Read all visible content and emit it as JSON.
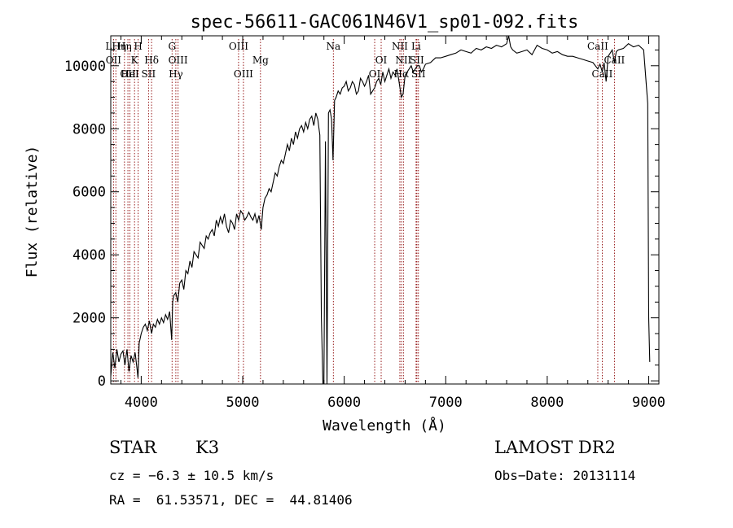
{
  "chart_data": {
    "type": "line",
    "title": "spec-56611-GAC061N46V1_sp01-092.fits",
    "xlabel": "Wavelength (Å)",
    "ylabel": "Flux (relative)",
    "xlim": [
      3700,
      9100
    ],
    "ylim": [
      -100,
      10950
    ],
    "xticks": [
      4000,
      5000,
      6000,
      7000,
      8000,
      9000
    ],
    "xtick_labels": [
      "4000",
      "5000",
      "6000",
      "7000",
      "8000",
      "9000"
    ],
    "yticks": [
      0,
      2000,
      4000,
      6000,
      8000,
      10000
    ],
    "ytick_labels": [
      "0",
      "2000",
      "4000",
      "6000",
      "8000",
      "10000"
    ],
    "grid": false,
    "series": [
      {
        "x": [
          3700,
          3720,
          3740,
          3760,
          3780,
          3800,
          3820,
          3840,
          3860,
          3880,
          3900,
          3920,
          3940,
          3960,
          3968,
          3980,
          4000,
          4020,
          4040,
          4060,
          4080,
          4102,
          4120,
          4140,
          4160,
          4180,
          4200,
          4220,
          4240,
          4260,
          4280,
          4300,
          4310,
          4320,
          4340,
          4360,
          4380,
          4400,
          4420,
          4440,
          4460,
          4480,
          4500,
          4520,
          4540,
          4560,
          4580,
          4600,
          4620,
          4640,
          4660,
          4680,
          4700,
          4720,
          4740,
          4760,
          4780,
          4800,
          4820,
          4840,
          4861,
          4880,
          4900,
          4920,
          4940,
          4960,
          4980,
          5000,
          5020,
          5040,
          5060,
          5080,
          5100,
          5120,
          5140,
          5160,
          5183,
          5200,
          5220,
          5240,
          5260,
          5280,
          5300,
          5320,
          5340,
          5360,
          5380,
          5400,
          5420,
          5440,
          5460,
          5480,
          5500,
          5520,
          5540,
          5560,
          5580,
          5600,
          5620,
          5640,
          5660,
          5680,
          5700,
          5720,
          5740,
          5760,
          5775,
          5790,
          5800,
          5815,
          5830,
          5845,
          5860,
          5875,
          5890,
          5905,
          5920,
          5940,
          5960,
          5980,
          6000,
          6020,
          6040,
          6060,
          6080,
          6100,
          6120,
          6140,
          6160,
          6180,
          6200,
          6220,
          6240,
          6260,
          6280,
          6300,
          6320,
          6340,
          6360,
          6380,
          6400,
          6420,
          6440,
          6460,
          6480,
          6500,
          6520,
          6540,
          6563,
          6580,
          6600,
          6620,
          6640,
          6660,
          6680,
          6700,
          6720,
          6740,
          6760,
          6780,
          6800,
          6850,
          6900,
          6950,
          7000,
          7050,
          7100,
          7150,
          7200,
          7250,
          7300,
          7350,
          7400,
          7450,
          7500,
          7550,
          7600,
          7620,
          7640,
          7660,
          7700,
          7750,
          7800,
          7850,
          7900,
          7950,
          8000,
          8050,
          8100,
          8150,
          8200,
          8250,
          8300,
          8350,
          8400,
          8450,
          8498,
          8520,
          8542,
          8560,
          8580,
          8600,
          8620,
          8640,
          8662,
          8680,
          8700,
          8750,
          8800,
          8850,
          8900,
          8950,
          8990,
          9000,
          9010
        ],
        "y": [
          150,
          900,
          400,
          1000,
          600,
          850,
          950,
          500,
          1000,
          300,
          800,
          600,
          900,
          350,
          100,
          1200,
          1500,
          1700,
          1800,
          1600,
          1900,
          1500,
          1800,
          1700,
          1950,
          1800,
          2000,
          1850,
          2100,
          1950,
          2200,
          1300,
          2500,
          2700,
          2800,
          2500,
          3100,
          3200,
          2900,
          3500,
          3400,
          3800,
          3600,
          4100,
          4000,
          3900,
          4400,
          4300,
          4200,
          4600,
          4500,
          4700,
          4800,
          4600,
          5100,
          4900,
          5200,
          5000,
          5300,
          4900,
          4700,
          5100,
          5000,
          4800,
          5300,
          5100,
          5400,
          5300,
          5100,
          5200,
          5350,
          5200,
          5100,
          5300,
          5000,
          5250,
          4800,
          5500,
          5800,
          5900,
          6100,
          6000,
          6300,
          6600,
          6500,
          6800,
          7000,
          6900,
          7200,
          7500,
          7300,
          7700,
          7500,
          7900,
          7700,
          8000,
          8100,
          7900,
          8200,
          8000,
          8300,
          8400,
          8100,
          8500,
          8300,
          7800,
          2000,
          -100,
          -100,
          7600,
          -100,
          8500,
          8600,
          8300,
          7000,
          8900,
          9000,
          9200,
          9100,
          9300,
          9350,
          9500,
          9200,
          9300,
          9500,
          9400,
          9100,
          9200,
          9600,
          9500,
          9350,
          9500,
          9700,
          9100,
          9200,
          9300,
          9500,
          9600,
          9400,
          9800,
          9500,
          9700,
          9900,
          9600,
          9800,
          9700,
          9900,
          9500,
          9000,
          9100,
          9700,
          9800,
          9900,
          10000,
          9800,
          9900,
          10000,
          10000,
          9800,
          9900,
          10050,
          10100,
          10250,
          10250,
          10300,
          10350,
          10400,
          10500,
          10450,
          10400,
          10550,
          10500,
          10600,
          10550,
          10650,
          10600,
          10700,
          10950,
          10600,
          10500,
          10400,
          10450,
          10500,
          10350,
          10650,
          10550,
          10500,
          10400,
          10450,
          10350,
          10300,
          10300,
          10250,
          10200,
          10150,
          10100,
          9900,
          10050,
          9800,
          10100,
          9500,
          10300,
          10400,
          10500,
          10100,
          10450,
          10500,
          10550,
          10700,
          10600,
          10650,
          10500,
          8800,
          2000,
          600
        ]
      }
    ],
    "lines": [
      {
        "x": 3727,
        "label": "OII",
        "row": 2
      },
      {
        "x": 3750,
        "label": "LHη",
        "row": 1
      },
      {
        "x": 3835,
        "label": "Hη",
        "row": 1
      },
      {
        "x": 3869,
        "label": "OII",
        "row": 3
      },
      {
        "x": 3889,
        "label": "HeI",
        "row": 3
      },
      {
        "x": 3934,
        "label": "K",
        "row": 2
      },
      {
        "x": 3970,
        "label": "H",
        "row": 1
      },
      {
        "x": 4072,
        "label": "SII",
        "row": 3
      },
      {
        "x": 4102,
        "label": "Hδ",
        "row": 2
      },
      {
        "x": 4304,
        "label": "G",
        "row": 1
      },
      {
        "x": 4341,
        "label": "Hγ",
        "row": 3
      },
      {
        "x": 4363,
        "label": "OIII",
        "row": 2
      },
      {
        "x": 4959,
        "label": "OIII",
        "row": 1
      },
      {
        "x": 5007,
        "label": "OIII",
        "row": 3
      },
      {
        "x": 5175,
        "label": "Mg",
        "row": 2
      },
      {
        "x": 5893,
        "label": "Na",
        "row": 1
      },
      {
        "x": 6300,
        "label": "OI",
        "row": 3
      },
      {
        "x": 6364,
        "label": "OI",
        "row": 2
      },
      {
        "x": 6548,
        "label": "NII",
        "row": 1
      },
      {
        "x": 6563,
        "label": "Hα",
        "row": 3
      },
      {
        "x": 6583,
        "label": "NII",
        "row": 2
      },
      {
        "x": 6708,
        "label": "Li",
        "row": 1
      },
      {
        "x": 6716,
        "label": "SII",
        "row": 2
      },
      {
        "x": 6731,
        "label": "SII",
        "row": 3
      },
      {
        "x": 8498,
        "label": "CaII",
        "row": 1
      },
      {
        "x": 8542,
        "label": "CaII",
        "row": 3
      },
      {
        "x": 8662,
        "label": "CaII",
        "row": 2
      }
    ]
  },
  "info": {
    "class": "STAR",
    "subclass": "K3",
    "survey": "LAMOST DR2",
    "cz": "cz = −6.3 ± 10.5 km/s",
    "obs_date": "Obs−Date: 20131114",
    "radec": "RA =  61.53571, DEC =  44.81406"
  },
  "colors": {
    "line_marker": "#8b0000",
    "spectrum": "#000000"
  }
}
